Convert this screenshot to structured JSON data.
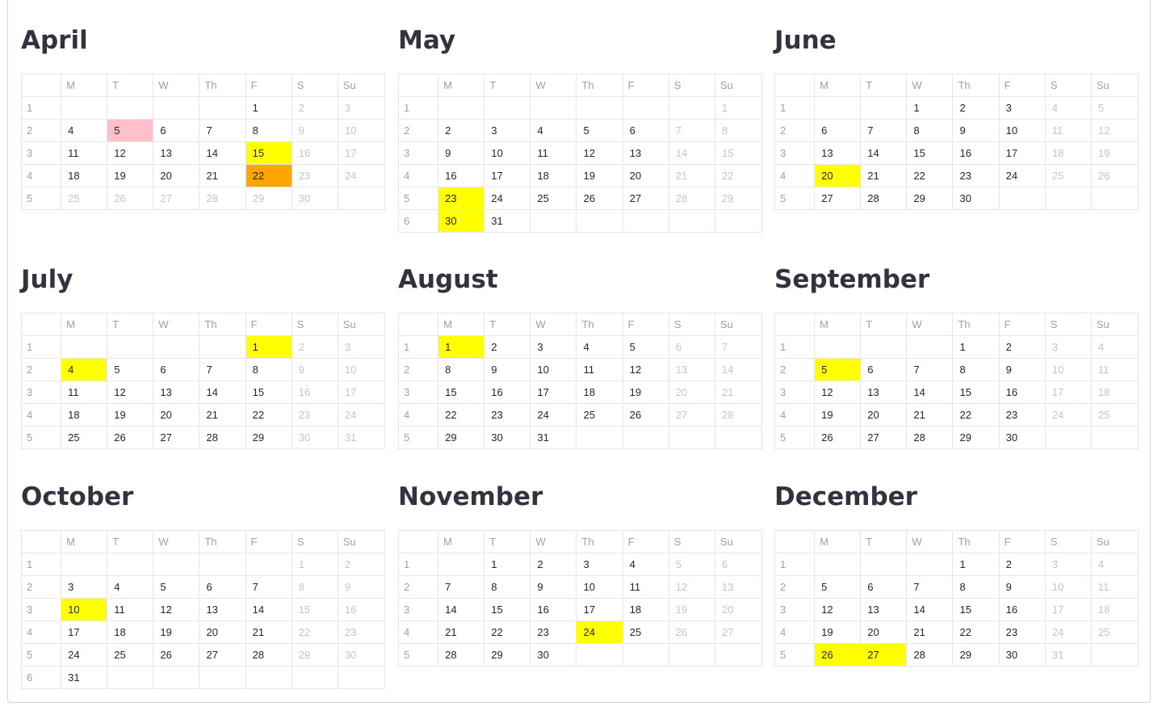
{
  "weekday_headers": [
    "M",
    "T",
    "W",
    "Th",
    "F",
    "S",
    "Su"
  ],
  "highlight_colors": {
    "yellow": "#ffff00",
    "orange": "#ffa500",
    "pink": "#ffc0cb"
  },
  "months": [
    {
      "name": "April",
      "weeks": [
        [
          "1",
          [
            "",
            "",
            "",
            "",
            "1",
            "2",
            "3"
          ]
        ],
        [
          "2",
          [
            "4",
            "5",
            "6",
            "7",
            "8",
            "9",
            "10"
          ]
        ],
        [
          "3",
          [
            "11",
            "12",
            "13",
            "14",
            "15",
            "16",
            "17"
          ]
        ],
        [
          "4",
          [
            "18",
            "19",
            "20",
            "21",
            "22",
            "23",
            "24"
          ]
        ],
        [
          "5",
          [
            "25",
            "26",
            "27",
            "28",
            "29",
            "30",
            ""
          ]
        ]
      ],
      "highlights": {
        "5": "pink",
        "15": "yellow",
        "22": "orange"
      },
      "dimmed": [
        "25",
        "26",
        "27",
        "28",
        "29",
        "30"
      ]
    },
    {
      "name": "May",
      "weeks": [
        [
          "1",
          [
            "",
            "",
            "",
            "",
            "",
            "",
            "1"
          ]
        ],
        [
          "2",
          [
            "2",
            "3",
            "4",
            "5",
            "6",
            "7",
            "8"
          ]
        ],
        [
          "3",
          [
            "9",
            "10",
            "11",
            "12",
            "13",
            "14",
            "15"
          ]
        ],
        [
          "4",
          [
            "16",
            "17",
            "18",
            "19",
            "20",
            "21",
            "22"
          ]
        ],
        [
          "5",
          [
            "23",
            "24",
            "25",
            "26",
            "27",
            "28",
            "29"
          ]
        ],
        [
          "6",
          [
            "30",
            "31",
            "",
            "",
            "",
            "",
            ""
          ]
        ]
      ],
      "highlights": {
        "23": "yellow",
        "30": "yellow"
      },
      "dimmed": []
    },
    {
      "name": "June",
      "weeks": [
        [
          "1",
          [
            "",
            "",
            "1",
            "2",
            "3",
            "4",
            "5"
          ]
        ],
        [
          "2",
          [
            "6",
            "7",
            "8",
            "9",
            "10",
            "11",
            "12"
          ]
        ],
        [
          "3",
          [
            "13",
            "14",
            "15",
            "16",
            "17",
            "18",
            "19"
          ]
        ],
        [
          "4",
          [
            "20",
            "21",
            "22",
            "23",
            "24",
            "25",
            "26"
          ]
        ],
        [
          "5",
          [
            "27",
            "28",
            "29",
            "30",
            "",
            "",
            ""
          ]
        ]
      ],
      "highlights": {
        "20": "yellow"
      },
      "dimmed": []
    },
    {
      "name": "July",
      "weeks": [
        [
          "1",
          [
            "",
            "",
            "",
            "",
            "1",
            "2",
            "3"
          ]
        ],
        [
          "2",
          [
            "4",
            "5",
            "6",
            "7",
            "8",
            "9",
            "10"
          ]
        ],
        [
          "3",
          [
            "11",
            "12",
            "13",
            "14",
            "15",
            "16",
            "17"
          ]
        ],
        [
          "4",
          [
            "18",
            "19",
            "20",
            "21",
            "22",
            "23",
            "24"
          ]
        ],
        [
          "5",
          [
            "25",
            "26",
            "27",
            "28",
            "29",
            "30",
            "31"
          ]
        ]
      ],
      "highlights": {
        "1": "yellow",
        "4": "yellow"
      },
      "dimmed": []
    },
    {
      "name": "August",
      "weeks": [
        [
          "1",
          [
            "1",
            "2",
            "3",
            "4",
            "5",
            "6",
            "7"
          ]
        ],
        [
          "2",
          [
            "8",
            "9",
            "10",
            "11",
            "12",
            "13",
            "14"
          ]
        ],
        [
          "3",
          [
            "15",
            "16",
            "17",
            "18",
            "19",
            "20",
            "21"
          ]
        ],
        [
          "4",
          [
            "22",
            "23",
            "24",
            "25",
            "26",
            "27",
            "28"
          ]
        ],
        [
          "5",
          [
            "29",
            "30",
            "31",
            "",
            "",
            "",
            ""
          ]
        ]
      ],
      "highlights": {
        "1": "yellow"
      },
      "dimmed": []
    },
    {
      "name": "September",
      "weeks": [
        [
          "1",
          [
            "",
            "",
            "",
            "1",
            "2",
            "3",
            "4"
          ]
        ],
        [
          "2",
          [
            "5",
            "6",
            "7",
            "8",
            "9",
            "10",
            "11"
          ]
        ],
        [
          "3",
          [
            "12",
            "13",
            "14",
            "15",
            "16",
            "17",
            "18"
          ]
        ],
        [
          "4",
          [
            "19",
            "20",
            "21",
            "22",
            "23",
            "24",
            "25"
          ]
        ],
        [
          "5",
          [
            "26",
            "27",
            "28",
            "29",
            "30",
            "",
            ""
          ]
        ]
      ],
      "highlights": {
        "5": "yellow"
      },
      "dimmed": []
    },
    {
      "name": "October",
      "weeks": [
        [
          "1",
          [
            "",
            "",
            "",
            "",
            "",
            "1",
            "2"
          ]
        ],
        [
          "2",
          [
            "3",
            "4",
            "5",
            "6",
            "7",
            "8",
            "9"
          ]
        ],
        [
          "3",
          [
            "10",
            "11",
            "12",
            "13",
            "14",
            "15",
            "16"
          ]
        ],
        [
          "4",
          [
            "17",
            "18",
            "19",
            "20",
            "21",
            "22",
            "23"
          ]
        ],
        [
          "5",
          [
            "24",
            "25",
            "26",
            "27",
            "28",
            "29",
            "30"
          ]
        ],
        [
          "6",
          [
            "31",
            "",
            "",
            "",
            "",
            "",
            ""
          ]
        ]
      ],
      "highlights": {
        "10": "yellow"
      },
      "dimmed": []
    },
    {
      "name": "November",
      "weeks": [
        [
          "1",
          [
            "",
            "1",
            "2",
            "3",
            "4",
            "5",
            "6"
          ]
        ],
        [
          "2",
          [
            "7",
            "8",
            "9",
            "10",
            "11",
            "12",
            "13"
          ]
        ],
        [
          "3",
          [
            "14",
            "15",
            "16",
            "17",
            "18",
            "19",
            "20"
          ]
        ],
        [
          "4",
          [
            "21",
            "22",
            "23",
            "24",
            "25",
            "26",
            "27"
          ]
        ],
        [
          "5",
          [
            "28",
            "29",
            "30",
            "",
            "",
            "",
            ""
          ]
        ]
      ],
      "highlights": {
        "24": "yellow"
      },
      "dimmed": []
    },
    {
      "name": "December",
      "weeks": [
        [
          "1",
          [
            "",
            "",
            "",
            "1",
            "2",
            "3",
            "4"
          ]
        ],
        [
          "2",
          [
            "5",
            "6",
            "7",
            "8",
            "9",
            "10",
            "11"
          ]
        ],
        [
          "3",
          [
            "12",
            "13",
            "14",
            "15",
            "16",
            "17",
            "18"
          ]
        ],
        [
          "4",
          [
            "19",
            "20",
            "21",
            "22",
            "23",
            "24",
            "25"
          ]
        ],
        [
          "5",
          [
            "26",
            "27",
            "28",
            "29",
            "30",
            "31",
            ""
          ]
        ]
      ],
      "highlights": {
        "26": "yellow",
        "27": "yellow"
      },
      "dimmed": []
    }
  ]
}
